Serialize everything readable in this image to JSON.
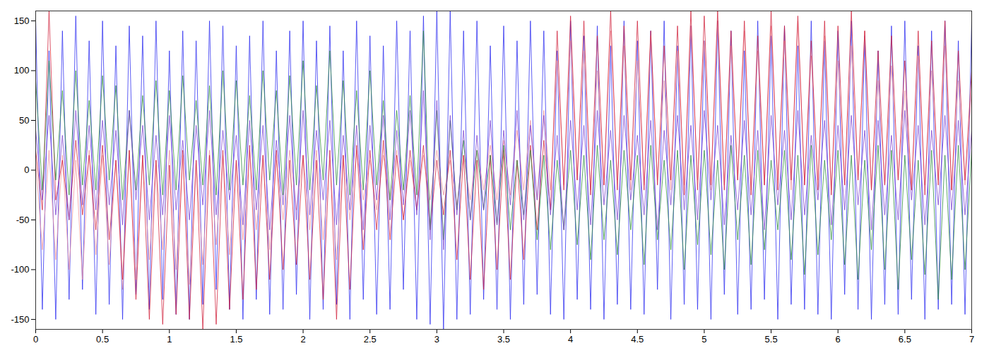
{
  "chart_data": {
    "type": "line",
    "xlim": [
      0,
      7
    ],
    "xticks": [
      0,
      0.5,
      1,
      1.5,
      2,
      2.5,
      3,
      3.5,
      4,
      4.5,
      5,
      5.5,
      6,
      6.5,
      7
    ],
    "ylim": [
      -160,
      160
    ],
    "yticks": [
      -150,
      -100,
      -50,
      0,
      50,
      100,
      150
    ],
    "grid": false,
    "x": [
      0,
      0.05,
      0.1,
      0.15,
      0.2,
      0.25,
      0.3,
      0.35,
      0.4,
      0.45,
      0.5,
      0.55,
      0.6,
      0.65,
      0.7,
      0.75,
      0.8,
      0.85,
      0.9,
      0.95,
      1,
      1.05,
      1.1,
      1.15,
      1.2,
      1.25,
      1.3,
      1.35,
      1.4,
      1.45,
      1.5,
      1.55,
      1.6,
      1.65,
      1.7,
      1.75,
      1.8,
      1.85,
      1.9,
      1.95,
      2,
      2.05,
      2.1,
      2.15,
      2.2,
      2.25,
      2.3,
      2.35,
      2.4,
      2.45,
      2.5,
      2.55,
      2.6,
      2.65,
      2.7,
      2.75,
      2.8,
      2.85,
      2.9,
      2.95,
      3,
      3.05,
      3.1,
      3.15,
      3.2,
      3.25,
      3.3,
      3.35,
      3.4,
      3.45,
      3.5,
      3.55,
      3.6,
      3.65,
      3.7,
      3.75,
      3.8,
      3.85,
      3.9,
      3.95,
      4,
      4.05,
      4.1,
      4.15,
      4.2,
      4.25,
      4.3,
      4.35,
      4.4,
      4.45,
      4.5,
      4.55,
      4.6,
      4.65,
      4.7,
      4.75,
      4.8,
      4.85,
      4.9,
      4.95,
      5,
      5.05,
      5.1,
      5.15,
      5.2,
      5.25,
      5.3,
      5.35,
      5.4,
      5.45,
      5.5,
      5.55,
      5.6,
      5.65,
      5.7,
      5.75,
      5.8,
      5.85,
      5.9,
      5.95,
      6,
      6.05,
      6.1,
      6.15,
      6.2,
      6.25,
      6.3,
      6.35,
      6.4,
      6.45,
      6.5,
      6.55,
      6.6,
      6.65,
      6.7,
      6.75,
      6.8,
      6.85,
      6.9,
      6.95,
      7
    ],
    "series": [
      {
        "color": "#2d2df0",
        "values": [
          150,
          -140,
          120,
          -150,
          140,
          -130,
          155,
          -120,
          130,
          -145,
          150,
          -135,
          125,
          -150,
          145,
          -125,
          135,
          -140,
          150,
          -130,
          120,
          -145,
          140,
          -150,
          130,
          -135,
          150,
          -120,
          145,
          -140,
          125,
          -150,
          135,
          -130,
          150,
          -145,
          120,
          -140,
          140,
          -125,
          150,
          -150,
          130,
          -140,
          145,
          -135,
          120,
          -150,
          150,
          -130,
          135,
          -145,
          125,
          -140,
          150,
          -120,
          140,
          -150,
          155,
          -155,
          160,
          -160,
          160,
          -150,
          140,
          -145,
          150,
          -130,
          125,
          -140,
          145,
          -150,
          130,
          -135,
          150,
          -125,
          140,
          -145,
          120,
          -150,
          150,
          -130,
          135,
          -140,
          145,
          -150,
          125,
          -135,
          150,
          -140,
          130,
          -145,
          140,
          -120,
          150,
          -150,
          125,
          -135,
          145,
          -140,
          130,
          -150,
          150,
          -125,
          140,
          -145,
          120,
          -140,
          150,
          -130,
          135,
          -150,
          145,
          -135,
          125,
          -140,
          150,
          -145,
          130,
          -150,
          140,
          -125,
          150,
          -140,
          135,
          -150,
          120,
          -135,
          145,
          -145,
          150,
          -130,
          125,
          -150,
          140,
          -140,
          150,
          -135,
          130,
          -145,
          150
        ]
      },
      {
        "color": "#f0909a",
        "values": [
          10,
          -80,
          20,
          -90,
          15,
          -100,
          10,
          -110,
          20,
          -85,
          15,
          -95,
          10,
          -120,
          20,
          -110,
          15,
          -90,
          10,
          -80,
          20,
          -100,
          15,
          -115,
          10,
          -95,
          20,
          -75,
          15,
          -85,
          10,
          -70,
          20,
          -60,
          15,
          -80,
          10,
          -50,
          20,
          -40,
          15,
          -60,
          20,
          -70,
          10,
          -90,
          15,
          -50,
          20,
          -30,
          10,
          -40,
          15,
          -30,
          20,
          -50,
          10,
          -40,
          15,
          -30,
          20,
          -25,
          10,
          -35,
          15,
          -30,
          20,
          -20,
          25,
          -30,
          30,
          -25,
          40,
          -20,
          50,
          -30,
          60,
          -20,
          110,
          -15,
          130,
          -10,
          120,
          -20,
          100,
          -15,
          140,
          -10,
          125,
          -20,
          110,
          -15,
          135,
          -10,
          90,
          -20,
          120,
          -15,
          145,
          -10,
          130,
          -20,
          150,
          -15,
          125,
          -10,
          140,
          -20,
          120,
          -15,
          145,
          -10,
          130,
          -20,
          150,
          -15,
          115,
          -10,
          135,
          -20,
          110,
          -15,
          125,
          -10,
          140,
          -20,
          90,
          -15,
          105,
          -10,
          80,
          -20,
          115,
          -15,
          100,
          -10,
          125,
          -20,
          90,
          -15,
          80
        ]
      },
      {
        "color": "#d0203a",
        "values": [
          20,
          -40,
          160,
          -30,
          10,
          -50,
          30,
          -45,
          15,
          -60,
          25,
          -70,
          10,
          -110,
          20,
          -130,
          15,
          -150,
          10,
          -155,
          5,
          -145,
          20,
          -150,
          10,
          -160,
          15,
          -155,
          20,
          -140,
          10,
          -130,
          25,
          -120,
          15,
          -110,
          20,
          -100,
          10,
          -95,
          15,
          -110,
          10,
          -130,
          20,
          -150,
          15,
          -120,
          25,
          -80,
          20,
          -60,
          30,
          -70,
          15,
          -50,
          20,
          -40,
          25,
          -60,
          10,
          -45,
          20,
          -90,
          15,
          -110,
          10,
          -120,
          15,
          -100,
          20,
          -110,
          10,
          -90,
          25,
          -60,
          30,
          -40,
          140,
          -20,
          155,
          -10,
          150,
          -25,
          135,
          -15,
          160,
          -20,
          145,
          -10,
          150,
          -20,
          140,
          -15,
          125,
          -10,
          145,
          -25,
          160,
          -20,
          155,
          -15,
          160,
          -20,
          140,
          -10,
          150,
          -25,
          135,
          -15,
          160,
          -20,
          145,
          -10,
          155,
          -15,
          130,
          -20,
          150,
          -25,
          145,
          -15,
          160,
          -10,
          140,
          -20,
          120,
          -15,
          135,
          -10,
          110,
          -20,
          140,
          -25,
          130,
          -15,
          150,
          -20,
          120,
          -10,
          100
        ]
      },
      {
        "color": "#2a8a3a",
        "values": [
          90,
          -20,
          110,
          -10,
          80,
          -25,
          100,
          -15,
          70,
          -20,
          95,
          -10,
          85,
          -30,
          60,
          -20,
          75,
          -15,
          90,
          -25,
          80,
          -20,
          95,
          -10,
          70,
          -15,
          85,
          -25,
          100,
          -20,
          90,
          -15,
          75,
          -20,
          100,
          -10,
          80,
          -25,
          95,
          -15,
          110,
          -20,
          85,
          -10,
          120,
          -15,
          90,
          -25,
          80,
          -20,
          100,
          -15,
          70,
          -30,
          60,
          -20,
          75,
          -25,
          140,
          -60,
          60,
          -70,
          50,
          -40,
          30,
          -50,
          20,
          -40,
          15,
          -55,
          25,
          -60,
          10,
          -45,
          20,
          -70,
          15,
          -80,
          10,
          -60,
          20,
          -75,
          15,
          -90,
          25,
          -70,
          10,
          -85,
          20,
          -60,
          15,
          -95,
          25,
          -70,
          10,
          -80,
          20,
          -100,
          15,
          -75,
          20,
          -85,
          10,
          -100,
          25,
          -70,
          15,
          -95,
          20,
          -80,
          10,
          -60,
          20,
          -90,
          15,
          -105,
          25,
          -85,
          10,
          -70,
          20,
          -95,
          15,
          -110,
          10,
          -80,
          25,
          -100,
          20,
          -120,
          15,
          -90,
          10,
          -105,
          20,
          -130,
          15,
          -110,
          25,
          -100,
          20
        ]
      },
      {
        "color": "#7a3fd0",
        "values": [
          40,
          -30,
          55,
          -45,
          35,
          -50,
          60,
          -35,
          45,
          -40,
          50,
          -35,
          40,
          -55,
          60,
          -30,
          45,
          -50,
          35,
          -45,
          55,
          -40,
          30,
          -50,
          45,
          -35,
          60,
          -45,
          40,
          -30,
          35,
          -55,
          50,
          -40,
          45,
          -60,
          30,
          -35,
          55,
          -50,
          60,
          -45,
          40,
          -30,
          50,
          -55,
          35,
          -40,
          45,
          -60,
          45,
          -30,
          55,
          -50,
          40,
          -35,
          60,
          -45,
          80,
          -70,
          70,
          -80,
          55,
          -45,
          40,
          -50,
          35,
          -40,
          50,
          -55,
          40,
          -35,
          60,
          -50,
          45,
          -30,
          55,
          -45,
          35,
          -60,
          50,
          -40,
          45,
          -55,
          60,
          -35,
          40,
          -50,
          55,
          -30,
          35,
          -45,
          50,
          -60,
          40,
          -35,
          55,
          -40,
          45,
          -50,
          60,
          -30,
          45,
          -55,
          35,
          -40,
          50,
          -45,
          40,
          -60,
          55,
          -35,
          40,
          -50,
          60,
          -45,
          35,
          -30,
          50,
          -55,
          45,
          -40,
          55,
          -35,
          40,
          -60,
          50,
          -45,
          35,
          -50,
          60,
          -30,
          45,
          -55,
          40,
          -35,
          55,
          -40,
          50,
          -45,
          40
        ]
      }
    ]
  }
}
